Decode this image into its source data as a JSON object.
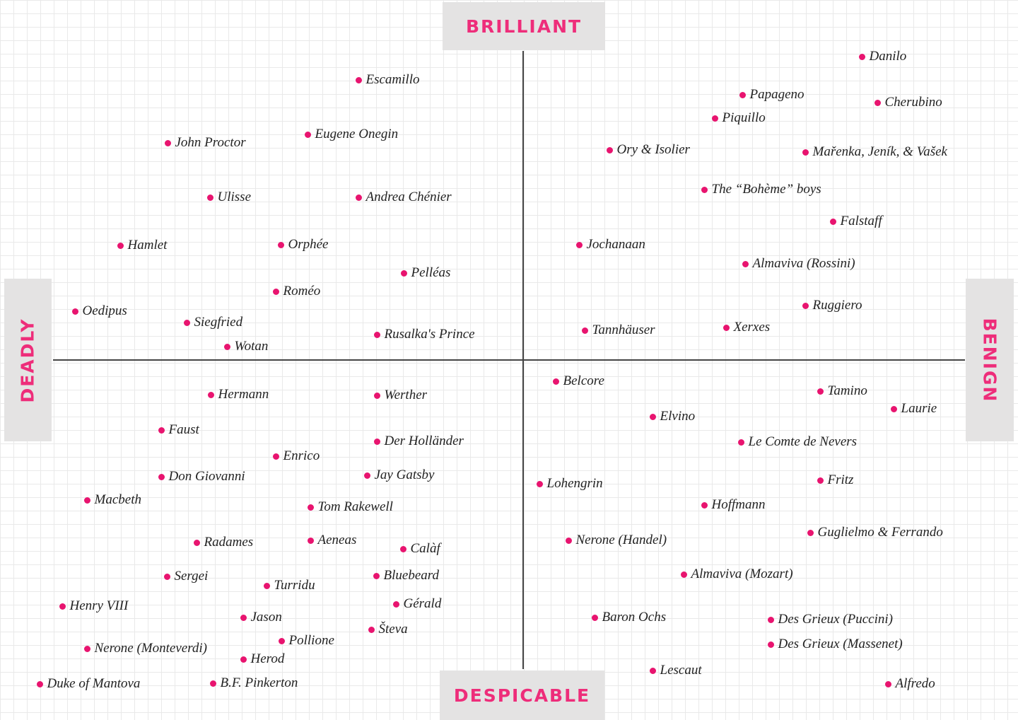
{
  "axes": {
    "top": "BRILLIANT",
    "bottom": "DESPICABLE",
    "left": "DEADLY",
    "right": "BENIGN"
  },
  "points": [
    "Escamillo",
    "Eugene Onegin",
    "John Proctor",
    "Ulisse",
    "Andrea Chénier",
    "Hamlet",
    "Orphée",
    "Pelléas",
    "Roméo",
    "Oedipus",
    "Siegfried",
    "Rusalka's Prince",
    "Wotan",
    "Danilo",
    "Papageno",
    "Cherubino",
    "Piquillo",
    "Ory & Isolier",
    "Mařenka, Jeník, & Vašek",
    "The “Bohème” boys",
    "Falstaff",
    "Jochanaan",
    "Almaviva (Rossini)",
    "Ruggiero",
    "Tannhäuser",
    "Xerxes",
    "Hermann",
    "Werther",
    "Faust",
    "Der Holländer",
    "Enrico",
    "Don Giovanni",
    "Jay Gatsby",
    "Macbeth",
    "Tom Rakewell",
    "Radames",
    "Aeneas",
    "Calàf",
    "Sergei",
    "Bluebeard",
    "Turridu",
    "Henry VIII",
    "Gérald",
    "Jason",
    "Števa",
    "Pollione",
    "Nerone (Monteverdi)",
    "Herod",
    "Duke of Mantova",
    "B.F. Pinkerton",
    "Belcore",
    "Tamino",
    "Laurie",
    "Elvino",
    "Le Comte de Nevers",
    "Lohengrin",
    "Fritz",
    "Hoffmann",
    "Guglielmo & Ferrando",
    "Nerone (Handel)",
    "Almaviva (Mozart)",
    "Baron Ochs",
    "Des Grieux (Puccini)",
    "Des Grieux (Massenet)",
    "Lescaut",
    "Alfredo"
  ]
}
